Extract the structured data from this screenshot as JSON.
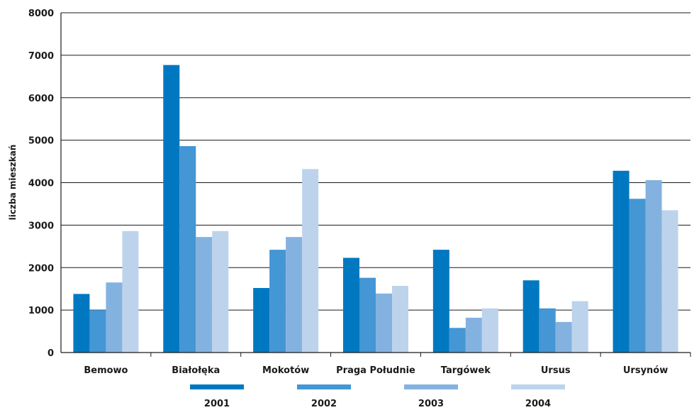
{
  "chart_data": {
    "type": "bar",
    "ylabel": "liczba mieszkań",
    "xlabel": "",
    "ylim": [
      0,
      8000
    ],
    "yticks": [
      0,
      1000,
      2000,
      3000,
      4000,
      5000,
      6000,
      7000,
      8000
    ],
    "grid": true,
    "legend_position": "bottom",
    "categories": [
      "Bemowo",
      "Białołęka",
      "Mokotów",
      "Praga Południe",
      "Targówek",
      "Ursus",
      "Ursynów"
    ],
    "series": [
      {
        "name": "2001",
        "color": "#0078c1",
        "values": [
          1380,
          6770,
          1520,
          2230,
          2420,
          1700,
          4280
        ]
      },
      {
        "name": "2002",
        "color": "#4496d4",
        "values": [
          1000,
          4860,
          2420,
          1760,
          580,
          1040,
          3620
        ]
      },
      {
        "name": "2003",
        "color": "#84b2e0",
        "values": [
          1650,
          2720,
          2720,
          1390,
          820,
          720,
          4060
        ]
      },
      {
        "name": "2004",
        "color": "#bdd3ec",
        "values": [
          2860,
          2860,
          4320,
          1570,
          1040,
          1210,
          3350
        ]
      }
    ]
  }
}
